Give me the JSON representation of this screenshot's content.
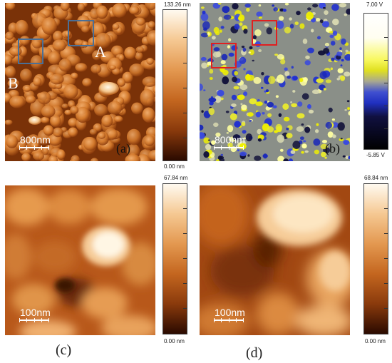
{
  "panels": {
    "a": {
      "letter": "(a)",
      "marker_a": "A",
      "marker_b": "B",
      "scale_label": "800nm",
      "colorbar_max": "133.26 nm",
      "colorbar_min": "0.00 nm",
      "box_color": "#4a6f96"
    },
    "b": {
      "letter": "(b)",
      "scale_label": "800nm",
      "colorbar_max": "7.00 V",
      "colorbar_min": "-5.85 V",
      "box_color": "#e02020"
    },
    "c": {
      "letter": "(c)",
      "scale_label": "100nm",
      "colorbar_max": "67.84 nm",
      "colorbar_min": "0.00 nm"
    },
    "d": {
      "letter": "(d)",
      "scale_label": "100nm",
      "colorbar_max": "68.84 nm",
      "colorbar_min": "0.00 nm"
    }
  },
  "colors": {
    "height_dark": "#2a0a00",
    "height_mid": "#c06018",
    "height_light": "#fff6e0",
    "potential_yellow": "#f0f000",
    "potential_blue": "#2030d0",
    "potential_gray": "#8a8f88"
  }
}
